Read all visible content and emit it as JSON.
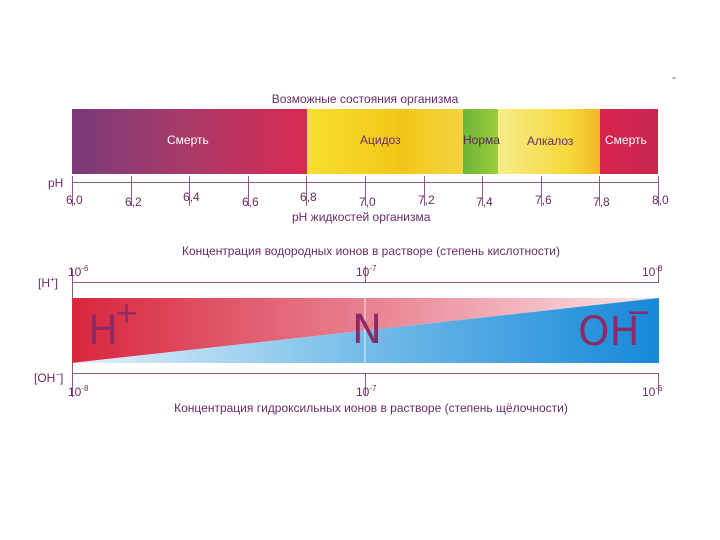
{
  "corner_mark": "-",
  "states": {
    "title": "Возможные состояния организма",
    "segments": [
      {
        "label": "Смерть",
        "from": 6.0,
        "to": 6.8
      },
      {
        "label": "Ацидоз",
        "from": 6.8,
        "to": 7.35
      },
      {
        "label": "Норма",
        "from": 7.35,
        "to": 7.45
      },
      {
        "label": "Алкалоз",
        "from": 7.45,
        "to": 7.8
      },
      {
        "label": "Смерть",
        "from": 7.8,
        "to": 8.0
      }
    ]
  },
  "ph_axis": {
    "label": "pH",
    "caption": "pH жидкостей организма",
    "ticks": [
      "6,0",
      "6,2",
      "6,4",
      "6,6",
      "6,8",
      "7,0",
      "7,2",
      "7,4",
      "7,6",
      "7,8",
      "8,0"
    ]
  },
  "hydrogen": {
    "title": "Концентрация водородных ионов в растворе (степень кислотности)",
    "axis_label": "[H+]",
    "values": [
      {
        "base": "10",
        "exp": "-6"
      },
      {
        "base": "10",
        "exp": "-7"
      },
      {
        "base": "10",
        "exp": "-8"
      }
    ]
  },
  "hydroxyl": {
    "title": "Концентрация гидроксильных ионов в растворе (степень щёлочности)",
    "axis_label": "[OH-]",
    "values": [
      {
        "base": "10",
        "exp": "-8"
      },
      {
        "base": "10",
        "exp": "-7"
      },
      {
        "base": "10",
        "exp": "-6"
      }
    ]
  },
  "gradient": {
    "left": "H",
    "left_sup": "+",
    "middle": "N",
    "right": "OH",
    "right_sup": "−"
  },
  "colors": {
    "death": "#8a3a78",
    "acid": "#f2c21a",
    "norm": "#7cbf3a",
    "alkal": "#f4e79a",
    "death_right": "#d8244f",
    "red": "#d8283f",
    "blue": "#1a8ad8"
  }
}
